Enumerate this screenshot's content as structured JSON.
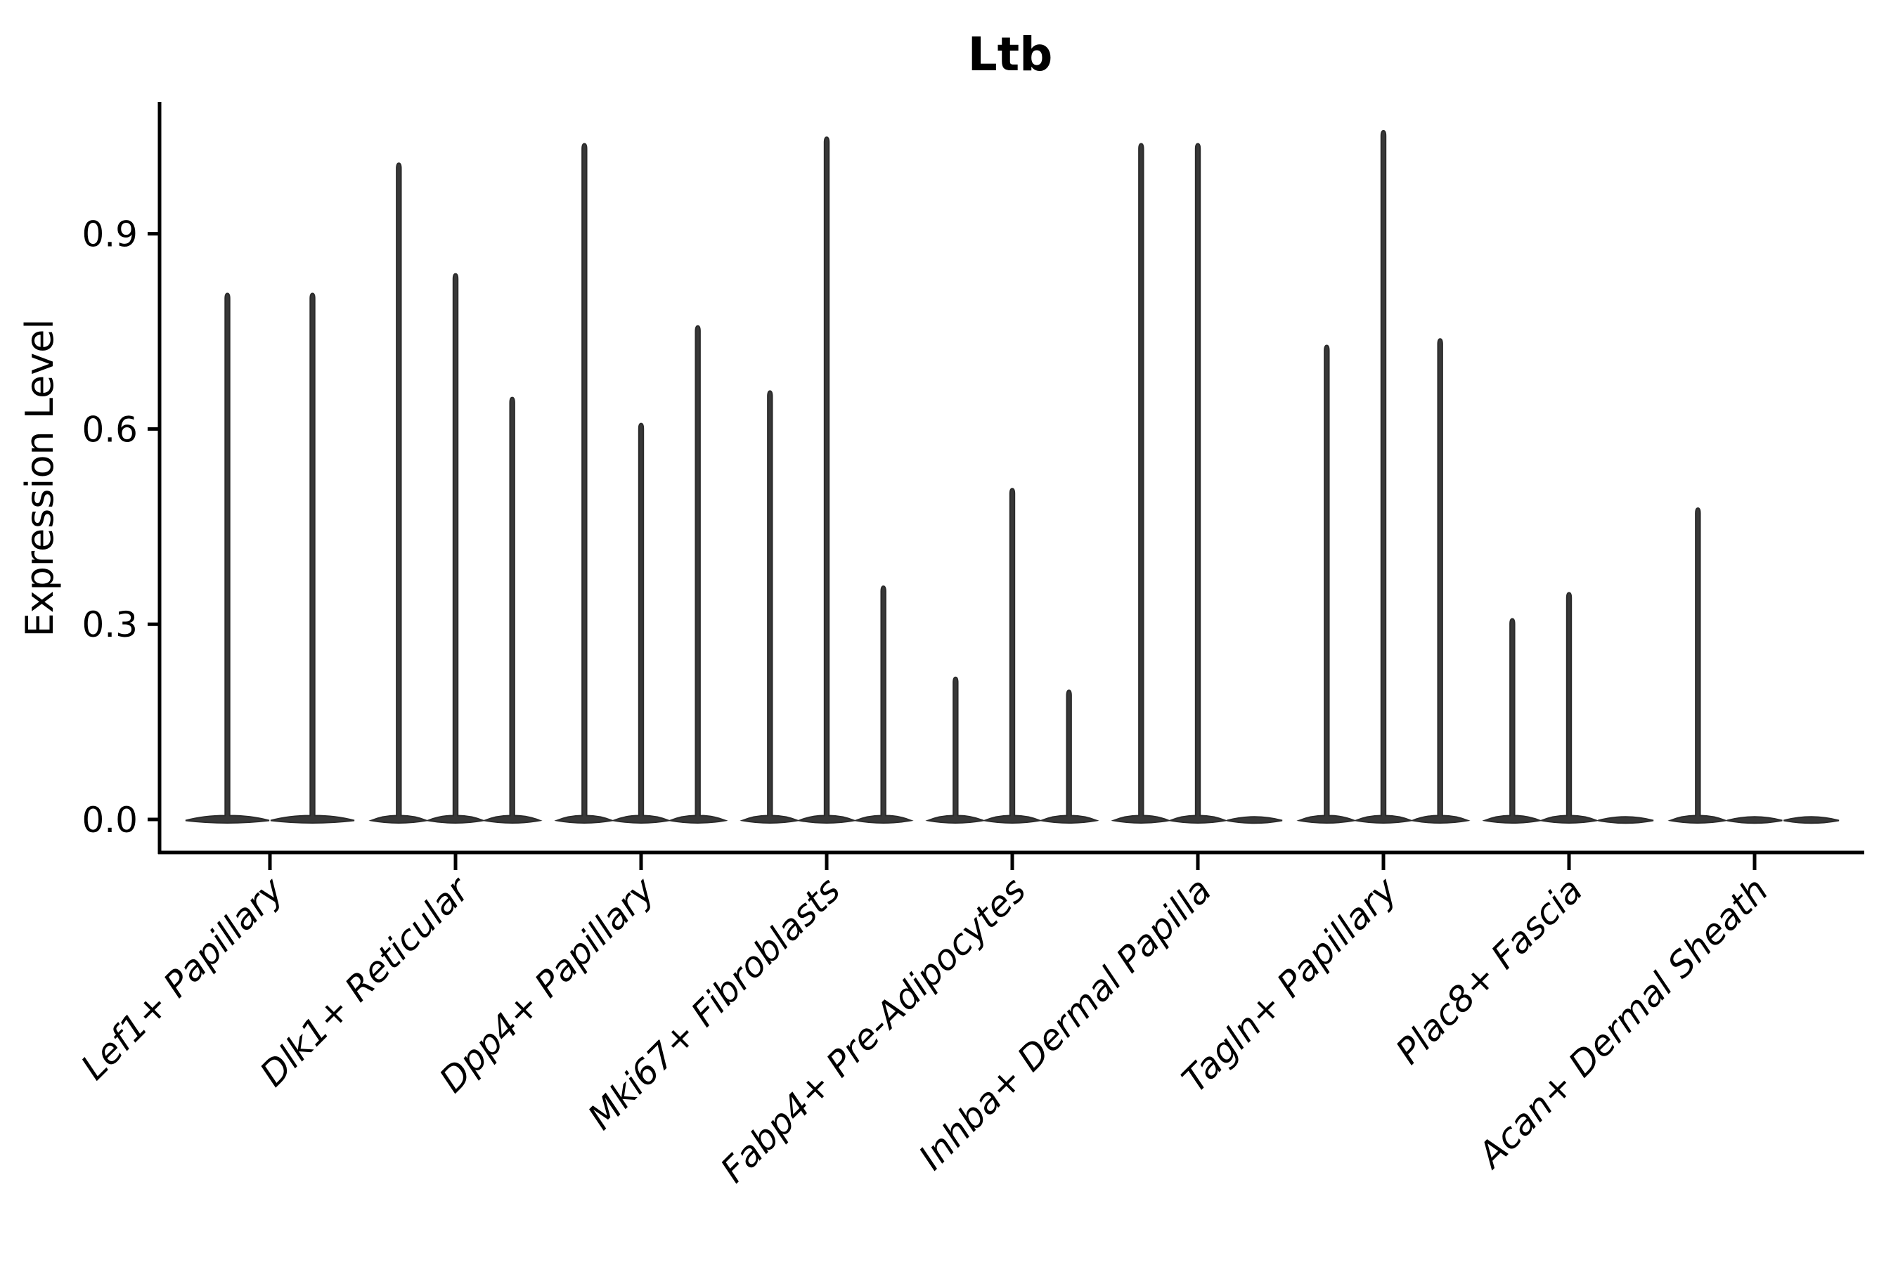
{
  "figure": {
    "title": "Ltb",
    "background": "#ffffff",
    "text_color": "#000000",
    "axis_color": "#000000",
    "violin_color": "#383838",
    "violin_outline": "#2a2a2a"
  },
  "chart_data": {
    "type": "violin",
    "title": "Ltb",
    "xlabel": "",
    "ylabel": "Expression Level",
    "yticks": [
      0.0,
      0.3,
      0.6,
      0.9
    ],
    "ytick_labels": [
      "0.0",
      "0.3",
      "0.6",
      "0.9"
    ],
    "ylim": [
      -0.05,
      1.1
    ],
    "grid": false,
    "legend": "none",
    "style": "spike-violins-dense-at-zero",
    "categories": [
      "Lef1+ Papillary",
      "Dlk1+ Reticular",
      "Dpp4+ Papillary",
      "Mki67+ Fibroblasts",
      "Fabp4+ Pre-Adipocytes",
      "Inhba+ Dermal Papilla",
      "Tagln+ Papillary",
      "Plac8+ Fascia",
      "Acan+ Dermal Sheath"
    ],
    "violins_per_category": [
      2,
      3,
      3,
      3,
      3,
      3,
      3,
      3,
      3
    ],
    "series": [
      {
        "name": "violin-1",
        "values": [
          0.81,
          1.01,
          1.04,
          0.66,
          0.22,
          1.04,
          0.73,
          0.31,
          0.48
        ]
      },
      {
        "name": "violin-2",
        "values": [
          0.81,
          0.84,
          0.61,
          1.05,
          0.51,
          1.04,
          1.06,
          0.35,
          0.0
        ]
      },
      {
        "name": "violin-3",
        "values": [
          null,
          0.65,
          0.76,
          0.36,
          0.2,
          0.0,
          0.74,
          0.0,
          0.0
        ]
      }
    ]
  }
}
